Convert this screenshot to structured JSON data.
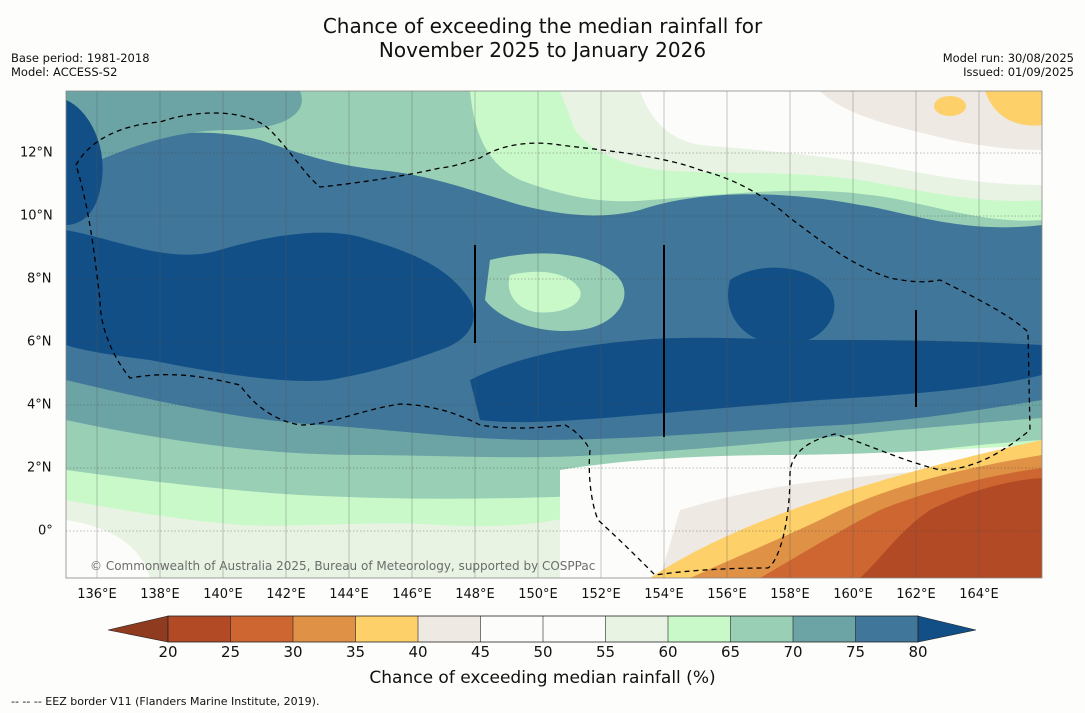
{
  "title": {
    "line1": "Chance of exceeding the median rainfall for",
    "line2": "November 2025 to January 2026"
  },
  "meta_left": {
    "base_period": "Base period: 1981-2018",
    "model": "Model: ACCESS-S2"
  },
  "meta_right": {
    "model_run": "Model run: 30/08/2025",
    "issued": "Issued: 01/09/2025"
  },
  "map": {
    "lon_labels": [
      "136°E",
      "138°E",
      "140°E",
      "142°E",
      "144°E",
      "146°E",
      "148°E",
      "150°E",
      "152°E",
      "154°E",
      "156°E",
      "158°E",
      "160°E",
      "162°E",
      "164°E"
    ],
    "lat_labels": [
      "12°N",
      "10°N",
      "8°N",
      "6°N",
      "4°N",
      "2°N",
      "0°"
    ],
    "copyright": "© Commonwealth of Australia 2025, Bureau of Meteorology, supported by COSPPac"
  },
  "colorbar": {
    "ticks": [
      "20",
      "25",
      "30",
      "35",
      "40",
      "45",
      "50",
      "55",
      "60",
      "65",
      "70",
      "75",
      "80"
    ],
    "label": "Chance of exceeding median rainfall (%)",
    "colors": {
      "below20": "#8e3b20",
      "20-25": "#b24a26",
      "25-30": "#cd6630",
      "30-35": "#df9145",
      "35-40": "#fdd06a",
      "40-45": "#efe9e4",
      "45-50": "#fcfcfa",
      "50-55": "#fcfcfa",
      "55-60": "#e8f3e4",
      "60-65": "#c9f9c9",
      "65-70": "#98cfb5",
      "70-75": "#6ca4a5",
      "75-80": "#3f7699",
      "above80": "#134f87"
    }
  },
  "footer": "--  --  -- EEZ border V11 (Flanders Marine Institute, 2019)."
}
